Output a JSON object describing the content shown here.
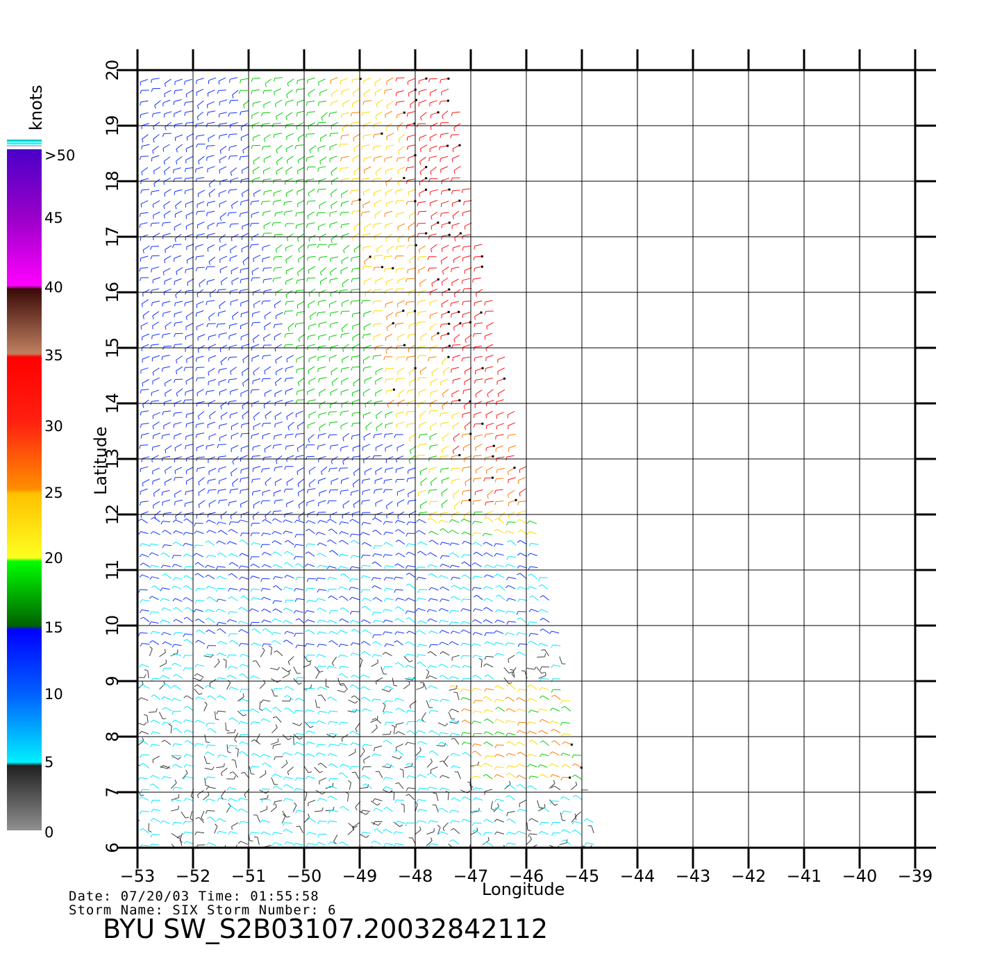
{
  "map": {
    "x_axis_label": "Longitude",
    "y_axis_label": "Latitude",
    "lon_ticks": [
      "−53",
      "−52",
      "−51",
      "−50",
      "−49",
      "−48",
      "−47",
      "−46",
      "−45",
      "−44",
      "−43",
      "−42",
      "−41",
      "−40",
      "−39"
    ],
    "lat_ticks": [
      "6",
      "7",
      "8",
      "9",
      "10",
      "11",
      "12",
      "13",
      "14",
      "15",
      "16",
      "17",
      "18",
      "19",
      "20"
    ],
    "lon_range": [
      -53,
      -39
    ],
    "lat_range": [
      6,
      20
    ],
    "grid": true,
    "swath_edge_points": [
      [
        -47.3,
        20
      ],
      [
        -47.0,
        18
      ],
      [
        -46.6,
        16
      ],
      [
        -46.0,
        13
      ],
      [
        -45.4,
        10
      ],
      [
        -44.8,
        6.5
      ],
      [
        -44.6,
        6
      ]
    ]
  },
  "legend": {
    "title": "knots",
    "labels": [
      ">50",
      "45",
      "40",
      "35",
      "30",
      "25",
      "20",
      "15",
      "10",
      "5",
      "0"
    ],
    "colors": {
      "purple": "#6a00c8",
      "magenta": "#ff00ff",
      "brown": "#5a1a10",
      "red": "#ff1010",
      "orange": "#ff7a00",
      "yellow": "#ffd800",
      "green": "#00cc00",
      "blue": "#1030ff",
      "cyan": "#00e8ff",
      "gray": "#555555"
    }
  },
  "info": {
    "line1": "Date: 07/20/03   Time: 01:55:58",
    "line2": "Storm Name: SIX   Storm Number: 6",
    "file_id": "BYU SW_S2B03107.20032842112"
  }
}
